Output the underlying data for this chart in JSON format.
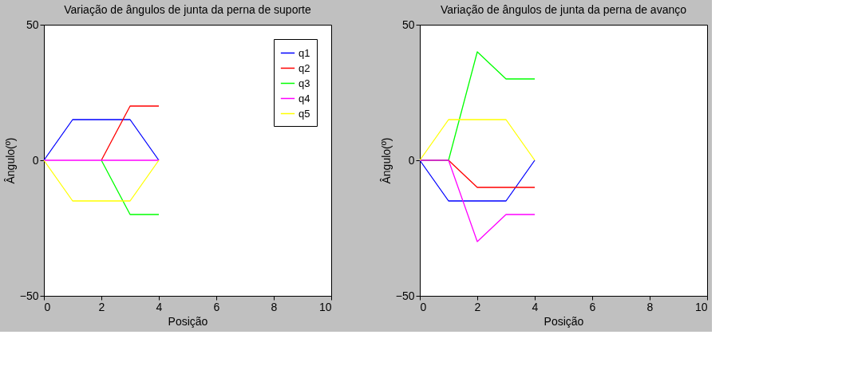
{
  "chart_data": [
    {
      "type": "line",
      "title": "Variação de ângulos de junta da perna de suporte",
      "xlabel": "Posição",
      "ylabel": "Ângulo(º)",
      "x": [
        0,
        1,
        2,
        3,
        4
      ],
      "xlim": [
        0,
        10
      ],
      "xticks": [
        0,
        2,
        4,
        6,
        8,
        10
      ],
      "ylim": [
        -50,
        50
      ],
      "yticks": [
        -50,
        0,
        50
      ],
      "grid": false,
      "legend": "top right",
      "series": [
        {
          "name": "q1",
          "color": "#0000ff",
          "values": [
            0,
            15,
            15,
            15,
            0
          ]
        },
        {
          "name": "q2",
          "color": "#ff0000",
          "values": [
            null,
            null,
            0,
            20,
            20
          ]
        },
        {
          "name": "q3",
          "color": "#00ff00",
          "values": [
            null,
            null,
            0,
            -20,
            -20
          ]
        },
        {
          "name": "q4",
          "color": "#ff00ff",
          "values": [
            0,
            0,
            0,
            0,
            0
          ]
        },
        {
          "name": "q5",
          "color": "#ffff00",
          "values": [
            0,
            -15,
            -15,
            -15,
            0
          ]
        }
      ]
    },
    {
      "type": "line",
      "title": "Variação de ângulos de junta da perna de avanço",
      "xlabel": "Posição",
      "ylabel": "Ângulo(º)",
      "x": [
        0,
        1,
        2,
        3,
        4
      ],
      "xlim": [
        0,
        10
      ],
      "xticks": [
        0,
        2,
        4,
        6,
        8,
        10
      ],
      "ylim": [
        -50,
        50
      ],
      "yticks": [
        -50,
        0,
        50
      ],
      "grid": false,
      "series": [
        {
          "color": "#0000ff",
          "values": [
            0,
            -15,
            -15,
            -15,
            0
          ]
        },
        {
          "color": "#ff0000",
          "values": [
            0,
            0,
            -10,
            -10,
            -10
          ]
        },
        {
          "color": "#00ff00",
          "values": [
            0,
            0,
            40,
            30,
            30
          ]
        },
        {
          "color": "#ff00ff",
          "values": [
            0,
            0,
            -30,
            -20,
            -20
          ]
        },
        {
          "color": "#ffff00",
          "values": [
            0,
            15,
            15,
            15,
            0
          ]
        }
      ]
    }
  ]
}
